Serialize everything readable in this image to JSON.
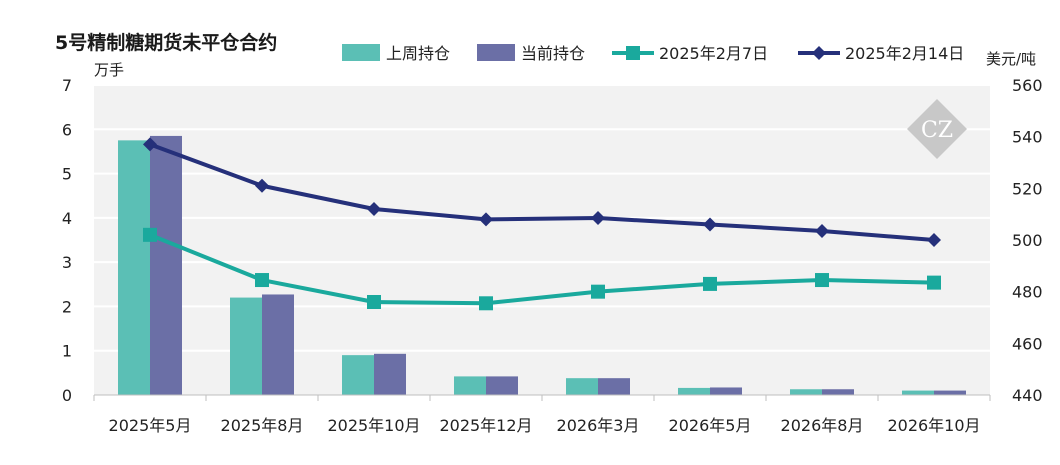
{
  "chart_data": {
    "type": "bar",
    "title": "5号精制糖期货未平仓合约",
    "left_unit": "万手",
    "right_unit": "美元/吨",
    "categories": [
      "2025年5月",
      "2025年8月",
      "2025年10月",
      "2025年12月",
      "2026年3月",
      "2026年5月",
      "2026年8月",
      "2026年10月"
    ],
    "left_ylim": [
      0,
      7
    ],
    "left_ticks": [
      0,
      1,
      2,
      3,
      4,
      5,
      6,
      7
    ],
    "right_ylim": [
      440,
      560
    ],
    "right_ticks": [
      440,
      460,
      480,
      500,
      520,
      540,
      560
    ],
    "bar_series": [
      {
        "name": "上周持仓",
        "axis": "left",
        "color": "#5bbfb5",
        "values": [
          5.75,
          2.2,
          0.9,
          0.42,
          0.38,
          0.16,
          0.13,
          0.1
        ]
      },
      {
        "name": "当前持仓",
        "axis": "left",
        "color": "#6b6fa6",
        "values": [
          5.85,
          2.27,
          0.93,
          0.42,
          0.38,
          0.17,
          0.13,
          0.1
        ]
      }
    ],
    "line_series": [
      {
        "name": "2025年2月7日",
        "axis": "right",
        "color": "#1aa99d",
        "marker": "square",
        "values": [
          502,
          484.5,
          476,
          475.5,
          480,
          483,
          484.5,
          483.5
        ]
      },
      {
        "name": "2025年2月14日",
        "axis": "right",
        "color": "#25307a",
        "marker": "diamond",
        "values": [
          537,
          521,
          512,
          508,
          508.5,
          506,
          503.5,
          500
        ]
      }
    ],
    "grid": true,
    "legend_position": "top",
    "watermark": "CZ"
  }
}
